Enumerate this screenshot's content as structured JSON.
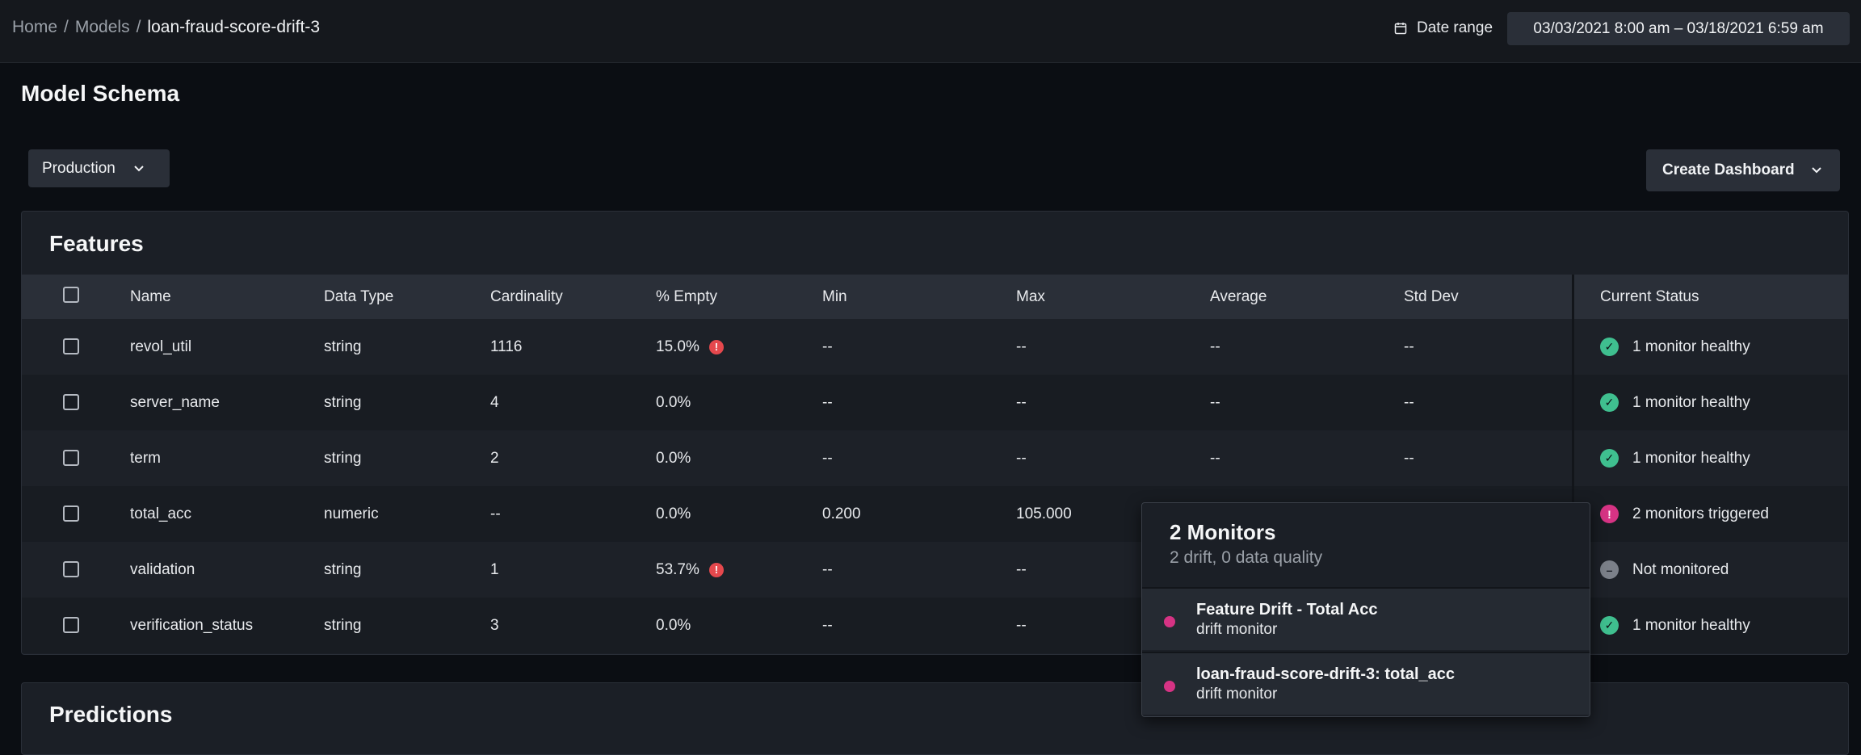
{
  "breadcrumb": {
    "home": "Home",
    "sep1": "/",
    "models": "Models",
    "sep2": "/",
    "current": "loan-fraud-score-drift-3"
  },
  "date_range": {
    "label": "Date range",
    "value": "03/03/2021 8:00 am – 03/18/2021 6:59 am",
    "icon": "calendar-icon"
  },
  "page_title": "Model Schema",
  "environment_button": {
    "label": "Production",
    "icon": "chevron-down-icon"
  },
  "create_dashboard_button": {
    "label": "Create Dashboard",
    "icon": "chevron-down-icon"
  },
  "features": {
    "title": "Features",
    "columns": [
      "Name",
      "Data Type",
      "Cardinality",
      "% Empty",
      "Min",
      "Max",
      "Average",
      "Std Dev",
      "Current Status"
    ],
    "rows": [
      {
        "name": "revol_util",
        "type": "string",
        "cardinality": "1116",
        "empty": "15.0%",
        "empty_warn": true,
        "min": "--",
        "max": "--",
        "avg": "--",
        "std": "--",
        "status": "1 monitor healthy",
        "status_kind": "healthy"
      },
      {
        "name": "server_name",
        "type": "string",
        "cardinality": "4",
        "empty": "0.0%",
        "empty_warn": false,
        "min": "--",
        "max": "--",
        "avg": "--",
        "std": "--",
        "status": "1 monitor healthy",
        "status_kind": "healthy"
      },
      {
        "name": "term",
        "type": "string",
        "cardinality": "2",
        "empty": "0.0%",
        "empty_warn": false,
        "min": "--",
        "max": "--",
        "avg": "--",
        "std": "--",
        "status": "1 monitor healthy",
        "status_kind": "healthy"
      },
      {
        "name": "total_acc",
        "type": "numeric",
        "cardinality": "--",
        "empty": "0.0%",
        "empty_warn": false,
        "min": "0.200",
        "max": "105.000",
        "avg": "",
        "std": "",
        "status": "2 monitors triggered",
        "status_kind": "triggered"
      },
      {
        "name": "validation",
        "type": "string",
        "cardinality": "1",
        "empty": "53.7%",
        "empty_warn": true,
        "min": "--",
        "max": "--",
        "avg": "",
        "std": "",
        "status": "Not monitored",
        "status_kind": "none"
      },
      {
        "name": "verification_status",
        "type": "string",
        "cardinality": "3",
        "empty": "0.0%",
        "empty_warn": false,
        "min": "--",
        "max": "--",
        "avg": "",
        "std": "",
        "status": "1 monitor healthy",
        "status_kind": "healthy"
      }
    ]
  },
  "predictions": {
    "title": "Predictions"
  },
  "popover": {
    "title": "2 Monitors",
    "subtitle": "2 drift, 0 data quality",
    "items": [
      {
        "name": "Feature Drift - Total Acc",
        "type": "drift monitor"
      },
      {
        "name": "loan-fraud-score-drift-3: total_acc",
        "type": "drift monitor"
      }
    ]
  },
  "colors": {
    "healthy": "#3fbf8f",
    "triggered": "#d63384",
    "none": "#7b8089",
    "warning": "#e5484d"
  }
}
